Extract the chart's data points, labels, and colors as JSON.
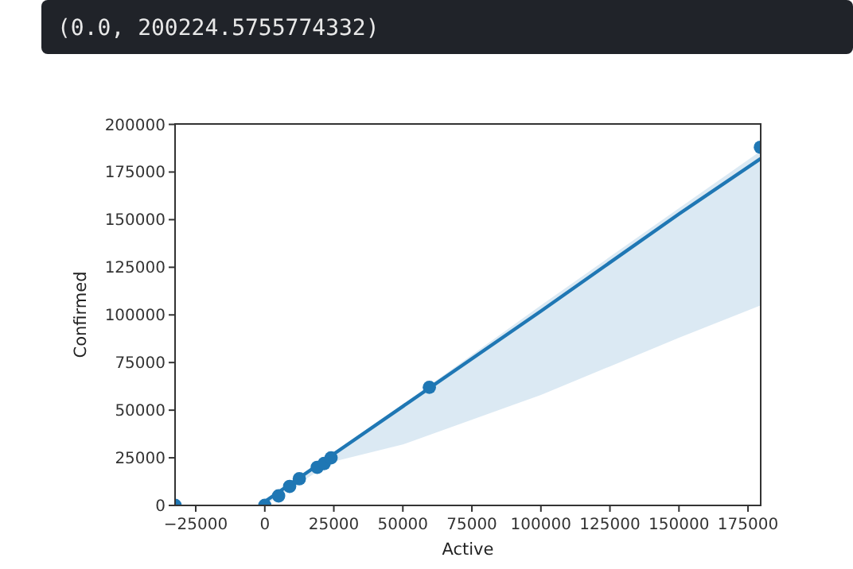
{
  "chart_data": {
    "type": "scatter",
    "xlabel": "Active",
    "ylabel": "Confirmed",
    "annotations": [
      "(0.0, 200224.5755774332)"
    ],
    "xlim": [
      -32500,
      179600
    ],
    "ylim": [
      0,
      200224.5755774332
    ],
    "xticks": [
      -25000,
      0,
      25000,
      50000,
      75000,
      100000,
      125000,
      150000,
      175000
    ],
    "yticks": [
      0,
      25000,
      50000,
      75000,
      100000,
      125000,
      150000,
      175000,
      200000
    ],
    "grid": false,
    "series": [
      {
        "marker": "circle",
        "color": "#1f77b4",
        "x": [
          -32500,
          0,
          5000,
          9000,
          12500,
          19000,
          21500,
          24000,
          59600,
          179500
        ],
        "values": [
          0,
          0,
          5000,
          10000,
          14000,
          20000,
          22000,
          25000,
          62000,
          188000
        ]
      },
      {
        "type": "line",
        "color": "#1f77b4",
        "x": [
          0,
          5000,
          25000,
          50000,
          100000,
          150000,
          179600
        ],
        "values": [
          2000,
          7000,
          27000,
          52000,
          102000,
          153000,
          182000
        ],
        "lower": [
          0,
          5000,
          23000,
          32000,
          58000,
          88000,
          105000
        ],
        "upper": [
          3000,
          8000,
          28000,
          53000,
          105000,
          156000,
          186000
        ]
      }
    ]
  }
}
